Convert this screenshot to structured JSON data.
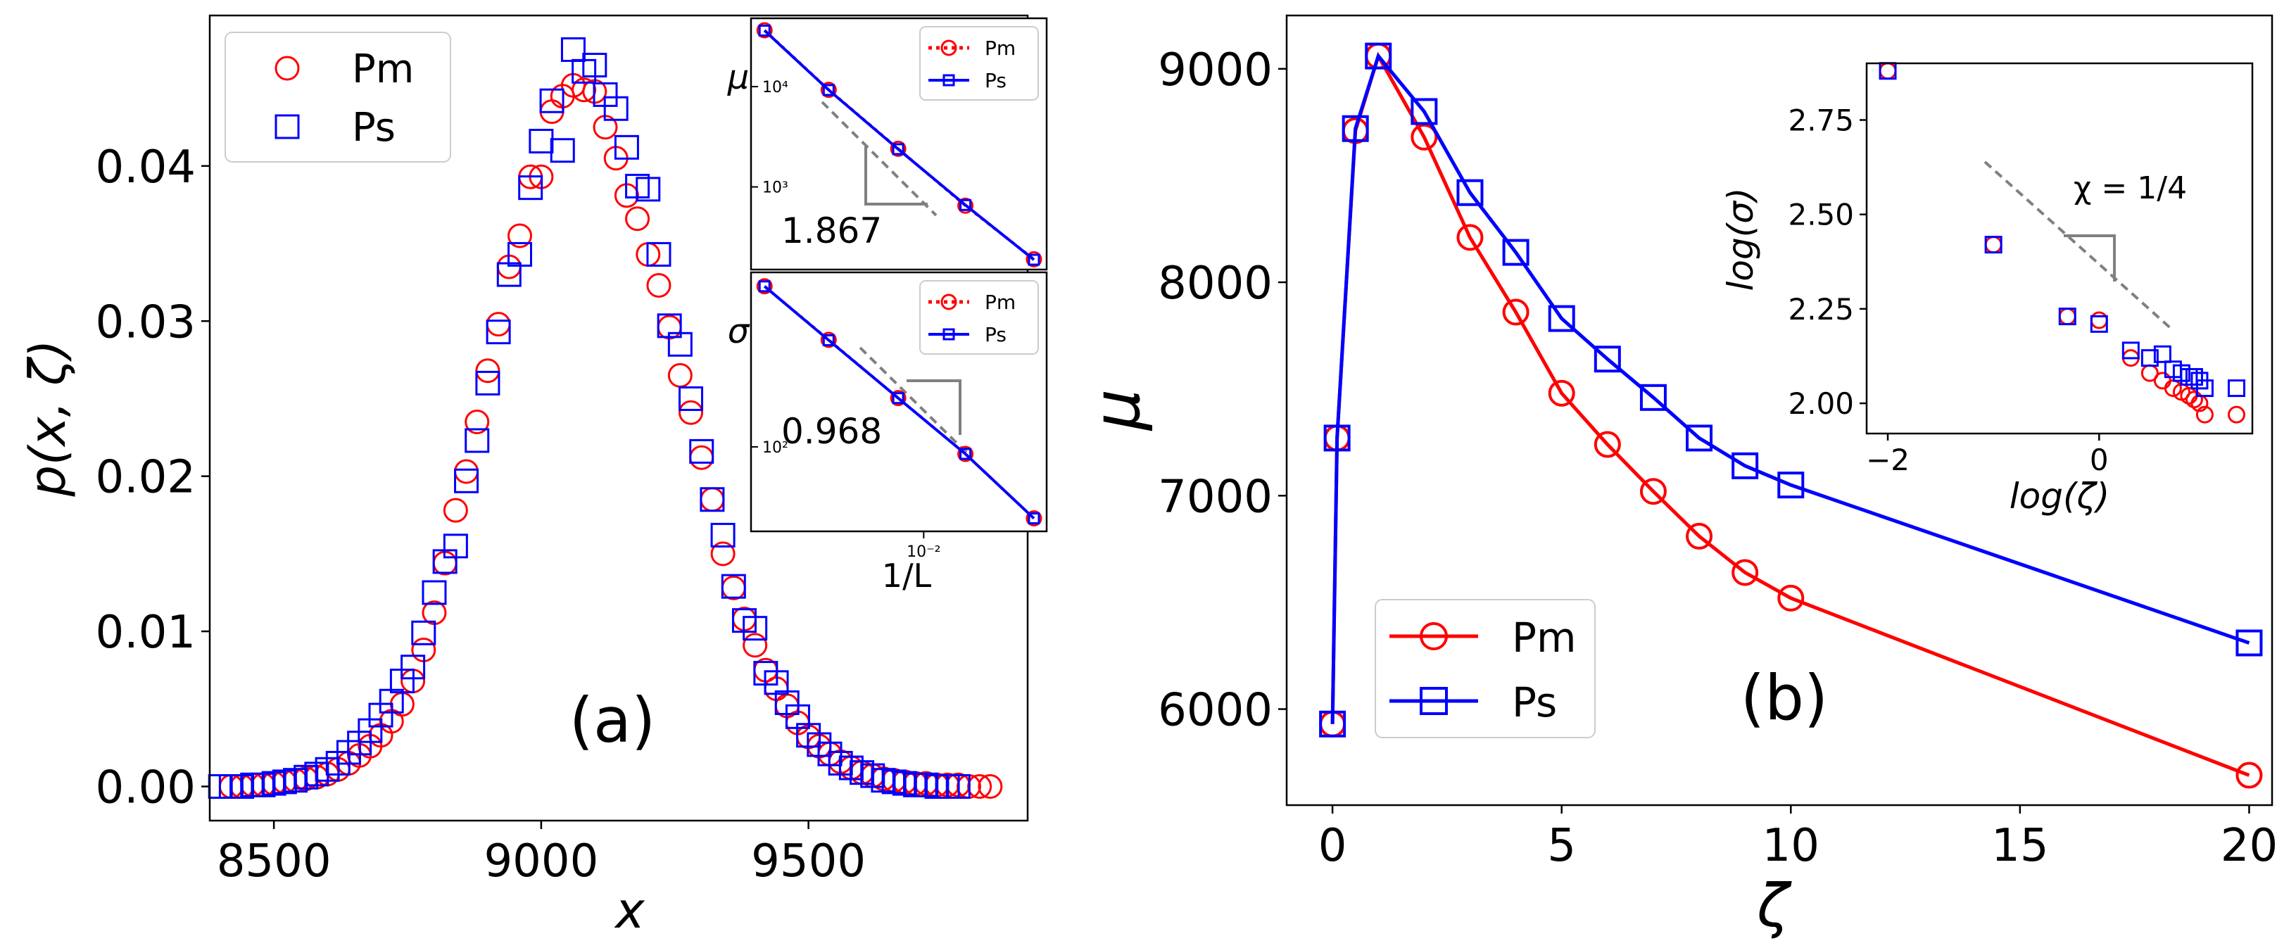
{
  "colors": {
    "pm": "#ff0000",
    "ps": "#0000ff",
    "slope": "#808080",
    "frame": "#000000"
  },
  "chart_data": [
    {
      "id": "a",
      "type": "scatter",
      "panel_label": "(a)",
      "xlabel": "x",
      "ylabel": "p(x, ζ)",
      "xlim": [
        8380,
        9910
      ],
      "ylim": [
        -0.0022,
        0.0497
      ],
      "xticks": [
        8500,
        9000,
        9500
      ],
      "xtick_labels": [
        "8500",
        "9000",
        "9500"
      ],
      "yticks": [
        0.0,
        0.01,
        0.02,
        0.03,
        0.04
      ],
      "ytick_labels": [
        "0.00",
        "0.01",
        "0.02",
        "0.03",
        "0.04"
      ],
      "legend": [
        "Pm",
        "Ps"
      ],
      "legend_loc": "upper-left",
      "series": [
        {
          "name": "Pm",
          "marker": "circle",
          "x": [
            8420,
            8440,
            8460,
            8480,
            8500,
            8520,
            8540,
            8560,
            8580,
            8600,
            8620,
            8640,
            8660,
            8680,
            8700,
            8720,
            8740,
            8760,
            8780,
            8800,
            8820,
            8840,
            8860,
            8880,
            8900,
            8920,
            8940,
            8960,
            8980,
            9000,
            9020,
            9040,
            9060,
            9080,
            9100,
            9120,
            9140,
            9160,
            9180,
            9200,
            9220,
            9240,
            9260,
            9280,
            9300,
            9320,
            9340,
            9360,
            9380,
            9400,
            9420,
            9440,
            9460,
            9480,
            9500,
            9520,
            9540,
            9560,
            9580,
            9600,
            9620,
            9640,
            9660,
            9680,
            9700,
            9720,
            9740,
            9760,
            9780,
            9800,
            9820,
            9840
          ],
          "y": [
            0.0,
            0.0,
            0.0001,
            0.0001,
            0.0002,
            0.0003,
            0.0004,
            0.0005,
            0.0006,
            0.0008,
            0.0011,
            0.0015,
            0.002,
            0.0026,
            0.0033,
            0.0042,
            0.0053,
            0.0068,
            0.0088,
            0.0112,
            0.0144,
            0.0178,
            0.0203,
            0.0235,
            0.0268,
            0.0298,
            0.0335,
            0.0355,
            0.0393,
            0.0393,
            0.0435,
            0.0445,
            0.0452,
            0.0449,
            0.0448,
            0.0425,
            0.0405,
            0.0381,
            0.0366,
            0.0343,
            0.0323,
            0.0296,
            0.0265,
            0.0241,
            0.0212,
            0.0185,
            0.015,
            0.0128,
            0.0108,
            0.0091,
            0.0075,
            0.0063,
            0.0052,
            0.0041,
            0.0032,
            0.0026,
            0.0021,
            0.0016,
            0.0012,
            0.0009,
            0.0007,
            0.0005,
            0.0004,
            0.0003,
            0.0002,
            0.0002,
            0.0001,
            0.0001,
            0.0001,
            0.0,
            0.0,
            0.0
          ]
        },
        {
          "name": "Ps",
          "marker": "square",
          "x": [
            8400,
            8420,
            8440,
            8460,
            8480,
            8500,
            8520,
            8540,
            8560,
            8580,
            8600,
            8620,
            8640,
            8660,
            8680,
            8700,
            8720,
            8740,
            8760,
            8780,
            8800,
            8820,
            8840,
            8860,
            8880,
            8900,
            8920,
            8940,
            8960,
            8980,
            9000,
            9020,
            9040,
            9060,
            9080,
            9100,
            9120,
            9140,
            9160,
            9180,
            9200,
            9220,
            9240,
            9260,
            9280,
            9300,
            9320,
            9340,
            9360,
            9380,
            9400,
            9420,
            9440,
            9460,
            9480,
            9500,
            9520,
            9540,
            9560,
            9580,
            9600,
            9620,
            9640,
            9660,
            9680,
            9700,
            9720,
            9740,
            9760,
            9780
          ],
          "y": [
            0.0,
            0.0,
            0.0,
            0.0001,
            0.0001,
            0.0002,
            0.0003,
            0.0004,
            0.0006,
            0.0008,
            0.0011,
            0.0015,
            0.0022,
            0.0028,
            0.0036,
            0.0046,
            0.0055,
            0.0068,
            0.0077,
            0.0099,
            0.0125,
            0.0145,
            0.0155,
            0.0197,
            0.0223,
            0.026,
            0.0293,
            0.033,
            0.0343,
            0.0386,
            0.0416,
            0.0442,
            0.041,
            0.0475,
            0.0461,
            0.0465,
            0.0446,
            0.0437,
            0.0412,
            0.0387,
            0.0385,
            0.0343,
            0.0297,
            0.0285,
            0.025,
            0.0216,
            0.0185,
            0.0162,
            0.0129,
            0.0107,
            0.0102,
            0.0073,
            0.0067,
            0.0054,
            0.0045,
            0.0033,
            0.0027,
            0.0021,
            0.0015,
            0.0012,
            0.0009,
            0.0007,
            0.0004,
            0.0003,
            0.0002,
            0.0001,
            0.0001,
            0.0,
            0.0,
            0.0
          ]
        }
      ]
    },
    {
      "id": "a-inset-mu",
      "type": "line",
      "xscale": "log",
      "yscale": "log",
      "ylabel": "μ",
      "yticks": [
        1000,
        10000
      ],
      "ytick_labels": [
        "10³",
        "10⁴"
      ],
      "slope_label": "1.867",
      "legend": [
        "Pm",
        "Ps"
      ],
      "legend_loc": "upper-right",
      "x": [
        0.0039,
        0.0057,
        0.0086,
        0.0128,
        0.0192
      ],
      "series": [
        {
          "name": "Pm",
          "linestyle": "dotted",
          "marker": "circle",
          "values": [
            36500,
            9300,
            2400,
            650,
            190
          ]
        },
        {
          "name": "Ps",
          "linestyle": "solid",
          "marker": "square",
          "values": [
            36200,
            9250,
            2380,
            660,
            188
          ]
        }
      ]
    },
    {
      "id": "a-inset-sigma",
      "type": "line",
      "xscale": "log",
      "yscale": "log",
      "xlabel": "1/L",
      "ylabel": "σ",
      "xticks": [
        0.01
      ],
      "xtick_labels": [
        "10⁻²"
      ],
      "yticks": [
        100
      ],
      "ytick_labels": [
        "10²"
      ],
      "slope_label": "0.968",
      "legend": [
        "Pm",
        "Ps"
      ],
      "legend_loc": "upper-right",
      "x": [
        0.0039,
        0.0057,
        0.0086,
        0.0128,
        0.0192
      ],
      "series": [
        {
          "name": "Pm",
          "linestyle": "dotted",
          "marker": "circle",
          "values": [
            520,
            300,
            165,
            93,
            48
          ]
        },
        {
          "name": "Ps",
          "linestyle": "solid",
          "marker": "square",
          "values": [
            520,
            299,
            165,
            93,
            48
          ]
        }
      ]
    },
    {
      "id": "b",
      "type": "line",
      "panel_label": "(b)",
      "xlabel": "ζ",
      "ylabel": "μ",
      "xlim": [
        -1,
        20.5
      ],
      "ylim": [
        5550,
        9250
      ],
      "xticks": [
        0,
        5,
        10,
        15,
        20
      ],
      "xtick_labels": [
        "0",
        "5",
        "10",
        "15",
        "20"
      ],
      "yticks": [
        6000,
        7000,
        8000,
        9000
      ],
      "ytick_labels": [
        "6000",
        "7000",
        "8000",
        "9000"
      ],
      "legend": [
        "Pm",
        "Ps"
      ],
      "legend_loc": "lower-left",
      "series": [
        {
          "name": "Pm",
          "marker": "circle",
          "x": [
            0,
            0.1,
            0.5,
            1,
            2,
            3,
            4,
            5,
            6,
            7,
            8,
            9,
            10,
            20
          ],
          "y": [
            5930,
            7270,
            8710,
            9060,
            8680,
            8210,
            7860,
            7480,
            7240,
            7020,
            6810,
            6640,
            6520,
            5690
          ]
        },
        {
          "name": "Ps",
          "marker": "square",
          "x": [
            0,
            0.1,
            0.5,
            1,
            2,
            3,
            4,
            5,
            6,
            7,
            8,
            9,
            10,
            20
          ],
          "y": [
            5930,
            7270,
            8720,
            9060,
            8800,
            8420,
            8140,
            7830,
            7640,
            7460,
            7270,
            7140,
            7050,
            6310
          ]
        }
      ]
    },
    {
      "id": "b-inset",
      "type": "scatter",
      "xlabel": "log(ζ)",
      "ylabel": "log(σ)",
      "xlim": [
        -2.2,
        1.45
      ],
      "ylim": [
        1.92,
        2.9
      ],
      "xticks": [
        -2,
        0
      ],
      "xtick_labels": [
        "−2",
        "0"
      ],
      "yticks": [
        2.0,
        2.25,
        2.5,
        2.75
      ],
      "ytick_labels": [
        "2.00",
        "2.25",
        "2.50",
        "2.75"
      ],
      "annotation": "χ = 1/4",
      "series": [
        {
          "name": "Pm",
          "marker": "circle",
          "x": [
            -2.0,
            -1.0,
            -0.3,
            0.0,
            0.3,
            0.48,
            0.6,
            0.7,
            0.78,
            0.85,
            0.9,
            0.95,
            1.0,
            1.3
          ],
          "y": [
            2.88,
            2.42,
            2.23,
            2.22,
            2.12,
            2.08,
            2.06,
            2.04,
            2.03,
            2.02,
            2.01,
            2.0,
            1.97,
            1.97
          ]
        },
        {
          "name": "Ps",
          "marker": "square",
          "x": [
            -2.0,
            -1.0,
            -0.3,
            0.0,
            0.3,
            0.48,
            0.6,
            0.7,
            0.78,
            0.85,
            0.9,
            0.95,
            1.0,
            1.3
          ],
          "y": [
            2.88,
            2.42,
            2.23,
            2.21,
            2.14,
            2.12,
            2.13,
            2.09,
            2.08,
            2.07,
            2.07,
            2.06,
            2.04,
            2.04
          ]
        }
      ]
    }
  ]
}
